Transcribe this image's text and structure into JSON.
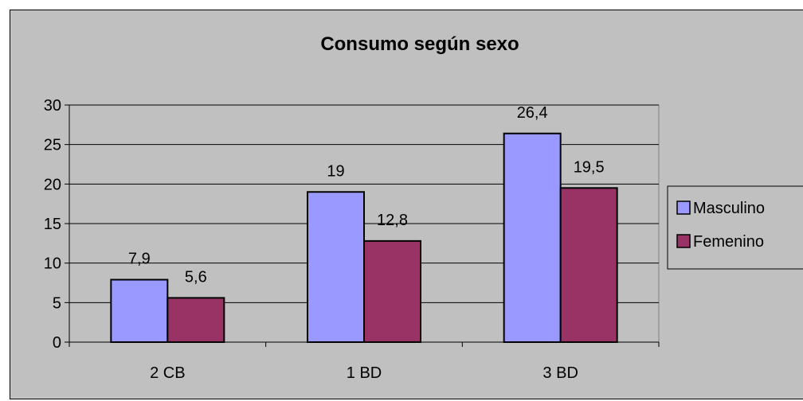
{
  "chart_data": {
    "type": "bar",
    "title": "Consumo según sexo",
    "categories": [
      "2 CB",
      "1 BD",
      "3 BD"
    ],
    "series": [
      {
        "name": "Masculino",
        "values": [
          7.9,
          19,
          26.4
        ],
        "value_labels": [
          "7,9",
          "19",
          "26,4"
        ],
        "color": "#9999ff"
      },
      {
        "name": "Femenino",
        "values": [
          5.6,
          12.8,
          19.5
        ],
        "value_labels": [
          "5,6",
          "12,8",
          "19,5"
        ],
        "color": "#993366"
      }
    ],
    "ylim": [
      0,
      30
    ],
    "yticks": [
      0,
      5,
      10,
      15,
      20,
      25,
      30
    ],
    "grid": true,
    "legend": "right",
    "plot_background": "#c0c0c0",
    "xlabel": "",
    "ylabel": ""
  }
}
